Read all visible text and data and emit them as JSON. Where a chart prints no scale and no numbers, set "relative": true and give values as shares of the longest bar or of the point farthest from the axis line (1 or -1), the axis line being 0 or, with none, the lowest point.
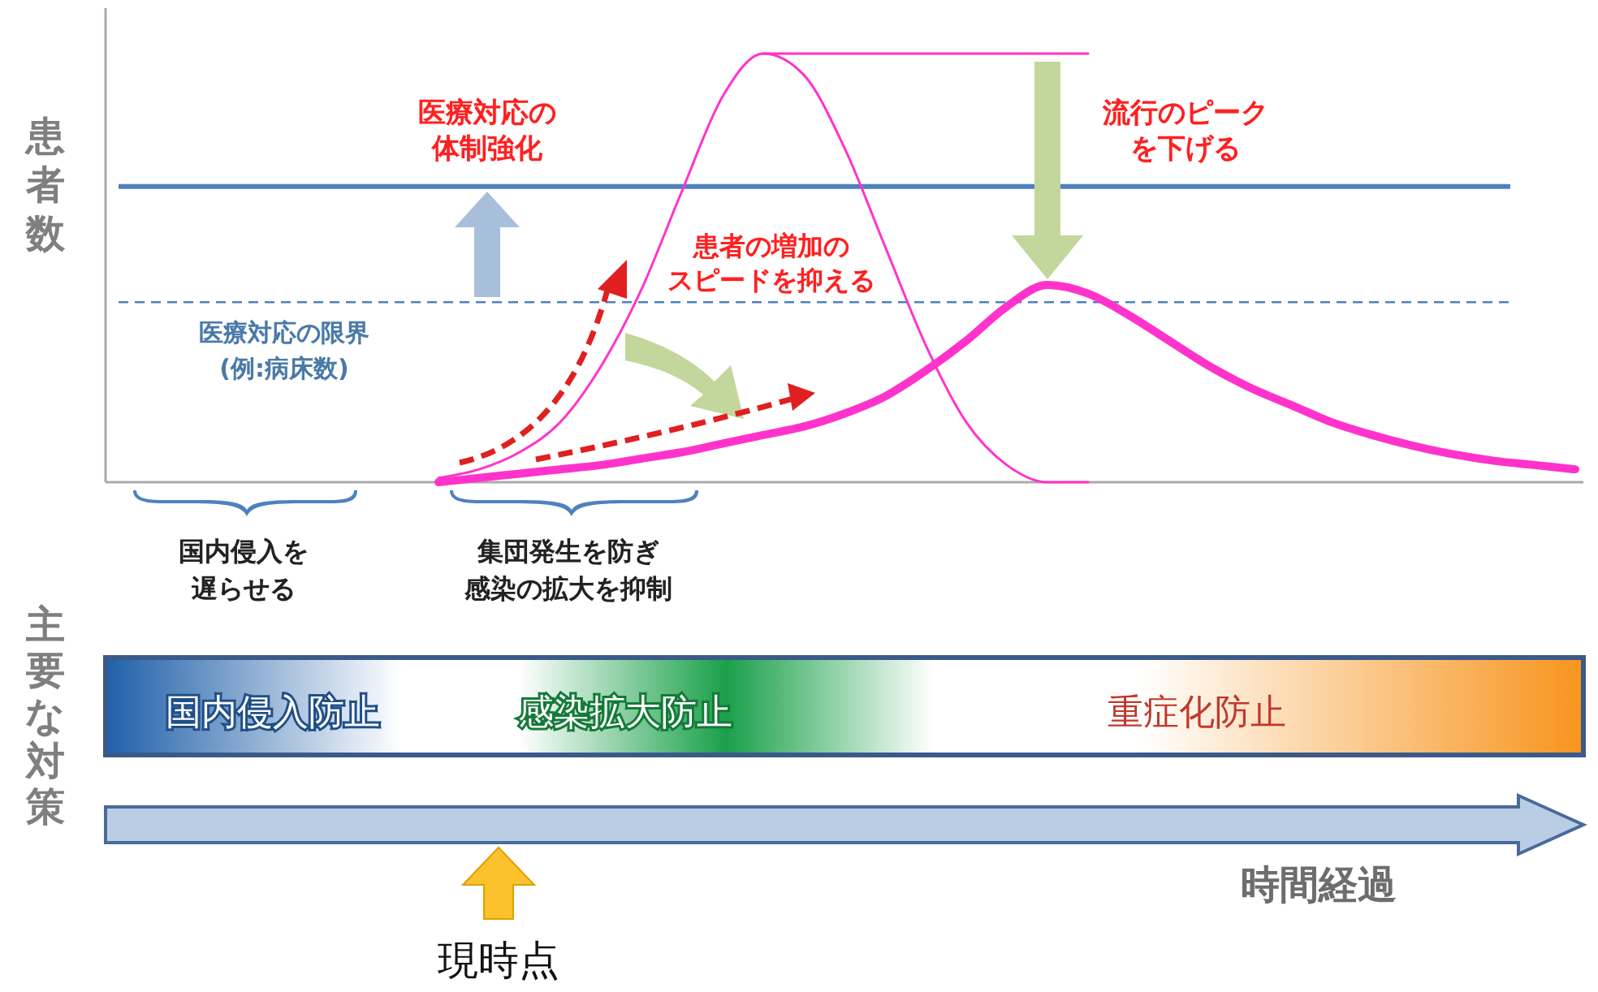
{
  "chart_data": {
    "type": "line",
    "relative": true,
    "ylabel": "患者数",
    "categories": [
      null,
      null,
      null,
      null,
      null,
      null,
      null,
      null,
      null,
      null,
      null,
      null,
      null,
      null,
      null,
      null,
      null,
      null,
      null,
      null,
      null,
      null,
      null,
      null,
      null,
      null,
      null,
      null,
      null,
      null,
      null,
      null,
      null,
      null,
      null,
      null,
      null
    ],
    "series": [
      {
        "color": "#ff33cc",
        "values": [
          null,
          null,
          null,
          null,
          null,
          null,
          null,
          null,
          0.01,
          0.03,
          0.07,
          0.14,
          0.27,
          0.45,
          0.68,
          0.9,
          1.0,
          0.95,
          0.78,
          0.55,
          0.32,
          0.14,
          0.04,
          0.0,
          0.0,
          null,
          null,
          null,
          null,
          null,
          null,
          null,
          null,
          null,
          null,
          null,
          null
        ]
      },
      {
        "color": "#ff33cc",
        "values": [
          null,
          null,
          null,
          null,
          null,
          null,
          null,
          null,
          0.0,
          0.01,
          0.02,
          0.03,
          0.04,
          0.055,
          0.07,
          0.09,
          0.11,
          0.13,
          0.16,
          0.2,
          0.26,
          0.33,
          0.41,
          0.46,
          0.44,
          0.39,
          0.33,
          0.27,
          0.22,
          0.18,
          0.14,
          0.11,
          0.085,
          0.065,
          0.05,
          0.04,
          0.03
        ]
      },
      {
        "color": "#ff33cc",
        "values": [
          null,
          null,
          null,
          null,
          null,
          null,
          null,
          null,
          null,
          null,
          null,
          null,
          null,
          null,
          null,
          null,
          1.0,
          1.0,
          1.0,
          1.0,
          1.0,
          1.0,
          1.0,
          1.0,
          1.0,
          null,
          null,
          null,
          null,
          null,
          null,
          null,
          null,
          null,
          null,
          null,
          null
        ]
      }
    ],
    "ref_lines": [
      {
        "axis": "y",
        "value": 0.69,
        "color": "#4f81bd",
        "line_style": "solid"
      },
      {
        "axis": "y",
        "value": 0.42,
        "label": "医療対応の限界(例:病床数)",
        "color": "#4f81bd",
        "line_style": "dashed"
      }
    ],
    "annotations": [
      "医療対応の体制強化",
      "患者の増加のスピードを抑える",
      "流行のピークを下げる",
      "国内侵入を遅らせる",
      "集団発生を防ぎ感染の拡大を抑制",
      "国内侵入防止",
      "感染拡大防止",
      "重症化防止",
      "時間経過",
      "現時点",
      "主要な対策"
    ]
  }
}
